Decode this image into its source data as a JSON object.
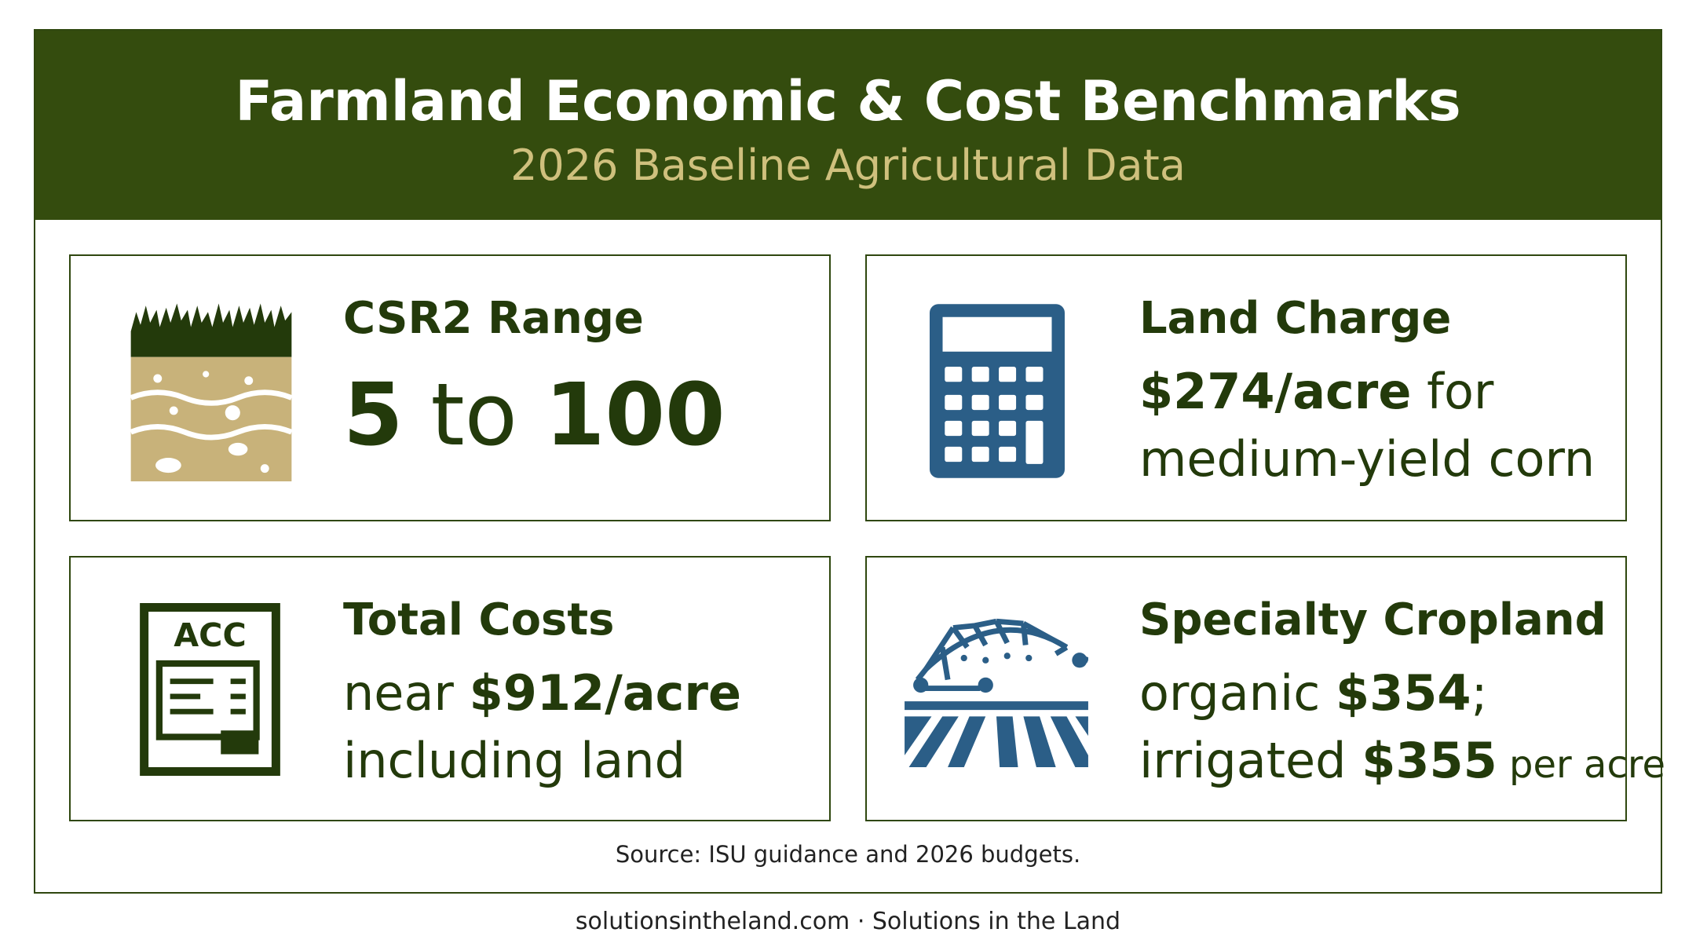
{
  "header": {
    "title": "Farmland Economic & Cost Benchmarks",
    "subtitle": "2026 Baseline Agricultural Data"
  },
  "cards": [
    {
      "title": "CSR2 Range",
      "lines": [
        [
          {
            "text": "5",
            "style": "strong"
          },
          {
            "text": " to "
          },
          {
            "text": "100",
            "style": "strong"
          }
        ]
      ]
    },
    {
      "title": "Land Charge",
      "lines": [
        [
          {
            "text": "$274/acre",
            "style": "strong"
          },
          {
            "text": " for"
          }
        ],
        [
          {
            "text": "medium-yield corn"
          }
        ]
      ]
    },
    {
      "title": "Total Costs",
      "icon_text": "ACC",
      "lines": [
        [
          {
            "text": "near "
          },
          {
            "text": "$912/acre",
            "style": "strong"
          }
        ],
        [
          {
            "text": "including land"
          }
        ]
      ]
    },
    {
      "title": "Specialty Cropland",
      "lines": [
        [
          {
            "text": "organic "
          },
          {
            "text": "$354",
            "style": "strong"
          },
          {
            "text": ";"
          }
        ],
        [
          {
            "text": "irrigated "
          },
          {
            "text": "$355",
            "style": "strong"
          },
          {
            "text": " per acre",
            "style": "small"
          }
        ]
      ]
    }
  ],
  "source": "Source: ISU guidance and 2026 budgets.",
  "footer": "solutionsintheland.com · Solutions in the Land"
}
